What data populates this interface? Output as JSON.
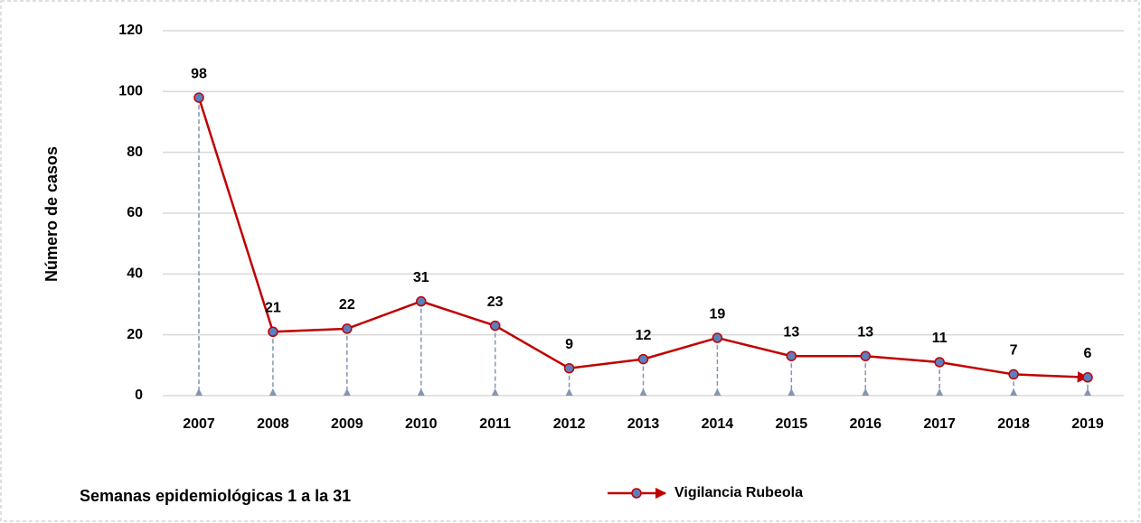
{
  "chart_data": {
    "type": "line",
    "ylabel": "Número de casos",
    "xlabel": "Semanas epidemiológicas 1 a la 31",
    "categories": [
      "2007",
      "2008",
      "2009",
      "2010",
      "2011",
      "2012",
      "2013",
      "2014",
      "2015",
      "2016",
      "2017",
      "2018",
      "2019"
    ],
    "series": [
      {
        "name": "Vigilancia Rubeola",
        "color": "#c00000",
        "marker_color": "#5b7fbf",
        "drop_line_color": "#8496b0",
        "values": [
          98,
          21,
          22,
          31,
          23,
          9,
          12,
          19,
          13,
          13,
          11,
          7,
          6
        ]
      }
    ],
    "ylim": [
      0,
      120
    ],
    "yticks": [
      0,
      20,
      40,
      60,
      80,
      100,
      120
    ],
    "grid": true,
    "legend": "bottom"
  }
}
